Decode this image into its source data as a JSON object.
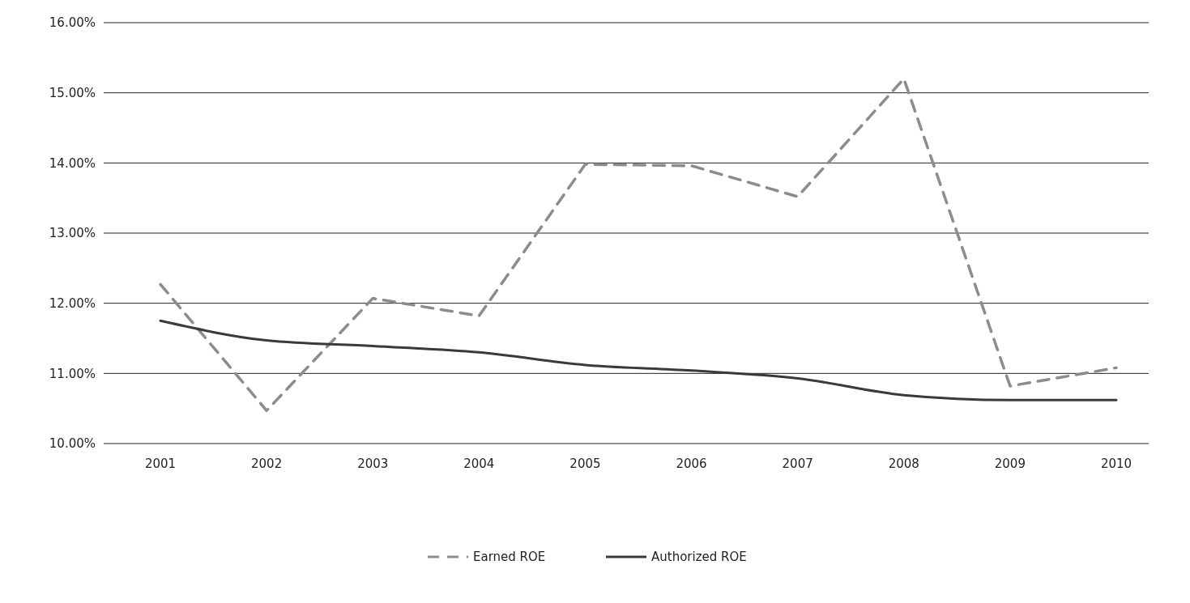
{
  "chart_data": {
    "type": "line",
    "categories": [
      "2001",
      "2002",
      "2003",
      "2004",
      "2005",
      "2006",
      "2007",
      "2008",
      "2009",
      "2010"
    ],
    "series": [
      {
        "name": "Earned ROE",
        "color": "#8c8c8c",
        "line_style": "dashed",
        "values": [
          12.27,
          10.47,
          12.07,
          11.82,
          13.98,
          13.96,
          13.52,
          15.2,
          10.82,
          11.08
        ]
      },
      {
        "name": "Authorized ROE",
        "color": "#3a3a3a",
        "line_style": "solid",
        "values": [
          11.75,
          11.47,
          11.39,
          11.3,
          11.12,
          11.04,
          10.93,
          10.69,
          10.62,
          10.62
        ]
      }
    ],
    "ylim": [
      10,
      16
    ],
    "yticks": [
      {
        "value": 10,
        "label": "10.00%"
      },
      {
        "value": 11,
        "label": "11.00%"
      },
      {
        "value": 12,
        "label": "12.00%"
      },
      {
        "value": 13,
        "label": "13.00%"
      },
      {
        "value": 14,
        "label": "14.00%"
      },
      {
        "value": 15,
        "label": "15.00%"
      },
      {
        "value": 16,
        "label": "16.00%"
      }
    ],
    "grid": "y",
    "legend": "bottom"
  }
}
